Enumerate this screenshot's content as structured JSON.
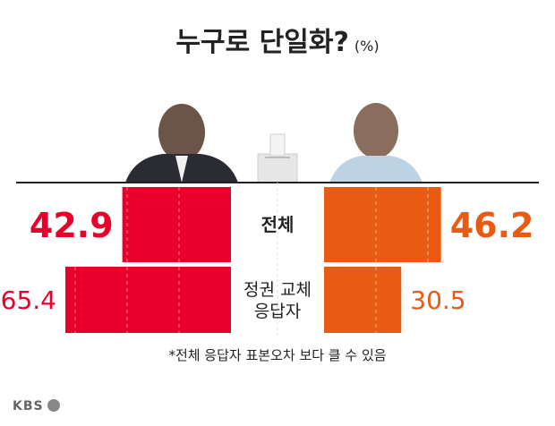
{
  "title": "누구로 단일화?",
  "unit": "(%)",
  "footnote": "*전체 응답자 표본오차 보다 클 수 있음",
  "logo": "KBS",
  "colors": {
    "left": "#e8002a",
    "right": "#e95a12",
    "text": "#222222"
  },
  "chart_data": {
    "type": "bar",
    "orientation": "horizontal-butterfly",
    "categories": [
      "전체",
      "정권 교체 응답자"
    ],
    "category_lines": [
      [
        "전체"
      ],
      [
        "정권 교체",
        "응답자"
      ]
    ],
    "series": [
      {
        "side": "left",
        "values": [
          42.9,
          65.4
        ]
      },
      {
        "side": "right",
        "values": [
          46.2,
          30.5
        ]
      }
    ]
  }
}
